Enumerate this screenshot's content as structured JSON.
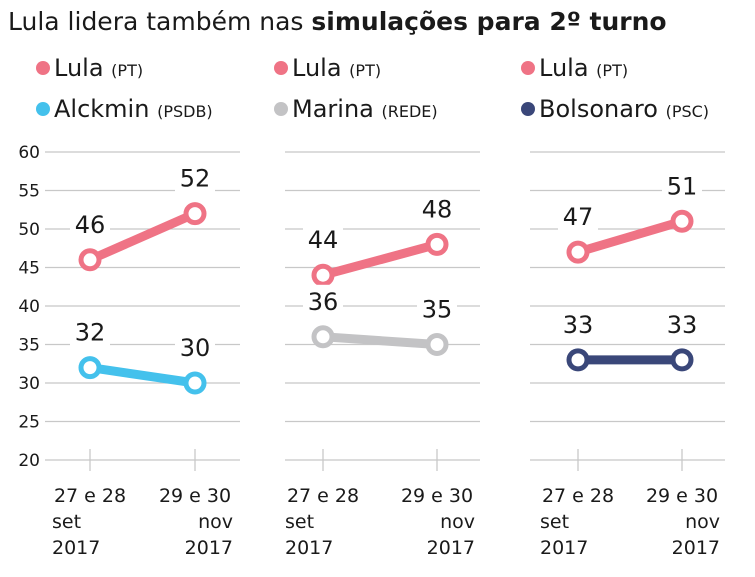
{
  "chart_data": [
    {
      "type": "line",
      "title_prefix": "Lula lidera também nas ",
      "title_bold": "simulações para 2º turno",
      "categories": [
        [
          "27 e 28",
          "set",
          "2017"
        ],
        [
          "29 e 30",
          "nov",
          "2017"
        ]
      ],
      "yticks": [
        60,
        55,
        50,
        45,
        40,
        35,
        30,
        25,
        20
      ],
      "ylim": [
        20,
        60
      ],
      "grid": true,
      "panels": [
        {
          "series": [
            {
              "name": "Lula",
              "party": "(PT)",
              "color": "#ef7385",
              "values": [
                46,
                52
              ]
            },
            {
              "name": "Alckmin",
              "party": "(PSDB)",
              "color": "#44c1ec",
              "values": [
                32,
                30
              ]
            }
          ]
        },
        {
          "series": [
            {
              "name": "Lula",
              "party": "(PT)",
              "color": "#ef7385",
              "values": [
                44,
                48
              ]
            },
            {
              "name": "Marina",
              "party": "(REDE)",
              "color": "#c3c3c5",
              "values": [
                36,
                35
              ]
            }
          ]
        },
        {
          "series": [
            {
              "name": "Lula",
              "party": "(PT)",
              "color": "#ef7385",
              "values": [
                47,
                51
              ]
            },
            {
              "name": "Bolsonaro",
              "party": "(PSC)",
              "color": "#3a4779",
              "values": [
                33,
                33
              ]
            }
          ]
        }
      ]
    }
  ]
}
